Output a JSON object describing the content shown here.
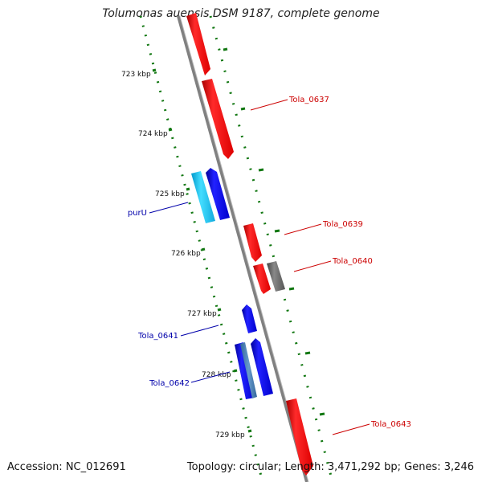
{
  "title": "Tolumonas auensis DSM 9187, complete genome",
  "footer": {
    "accession": "Accession: NC_012691",
    "summary": "Topology: circular; Length: 3,471,292 bp; Genes: 3,246"
  },
  "ticks": [
    {
      "label": "723 kbp"
    },
    {
      "label": "724 kbp"
    },
    {
      "label": "725 kbp"
    },
    {
      "label": "726 kbp"
    },
    {
      "label": "727 kbp"
    },
    {
      "label": "728 kbp"
    },
    {
      "label": "729 kbp"
    }
  ],
  "genes": [
    {
      "label": "Tola_0637",
      "strand": "forward",
      "color": "#cc0000"
    },
    {
      "label": "Tola_0639",
      "strand": "forward",
      "color": "#cc0000"
    },
    {
      "label": "Tola_0640",
      "strand": "forward",
      "color": "#cc0000"
    },
    {
      "label": "purU",
      "strand": "reverse",
      "color": "#0000aa"
    },
    {
      "label": "Tola_0641",
      "strand": "reverse",
      "color": "#0000aa"
    },
    {
      "label": "Tola_0642",
      "strand": "reverse",
      "color": "#0000aa"
    },
    {
      "label": "Tola_0643",
      "strand": "forward",
      "color": "#cc0000"
    }
  ],
  "colors": {
    "forward": "#ff0000",
    "reverse": "#0000ee",
    "rna": "#33ccff",
    "pseudo": "#666666",
    "backbone": "#888888",
    "gc_dots": "#117711"
  }
}
